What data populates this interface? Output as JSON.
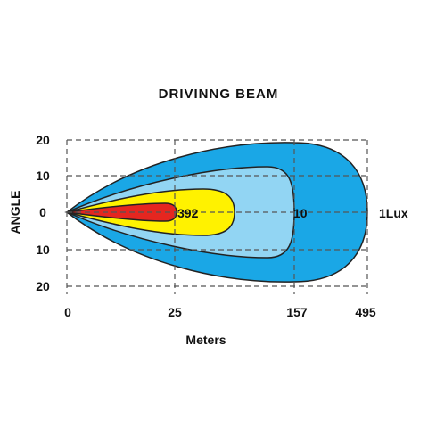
{
  "colors": {
    "outer": "#1aa7e6",
    "second": "#92d5f3",
    "third": "#fff200",
    "inner": "#e52620"
  },
  "chart_data": {
    "type": "heatmap",
    "title": "DRIVINNG  BEAM",
    "xlabel": "Meters",
    "ylabel": "ANGLE",
    "x_ticks": [
      "0",
      "25",
      "157",
      "495"
    ],
    "y_ticks": [
      "20",
      "10",
      "0",
      "10",
      "20"
    ],
    "grid": true,
    "isolux_contours": [
      {
        "label": "1Lux",
        "reach_tick": "495",
        "half_width": 20
      },
      {
        "label": "10",
        "reach_tick": "157",
        "half_width": 12.5
      },
      {
        "label": "392",
        "reach_tick": "",
        "half_width": 5
      },
      {
        "label": "",
        "reach_tick": "25",
        "half_width": 2
      }
    ]
  }
}
